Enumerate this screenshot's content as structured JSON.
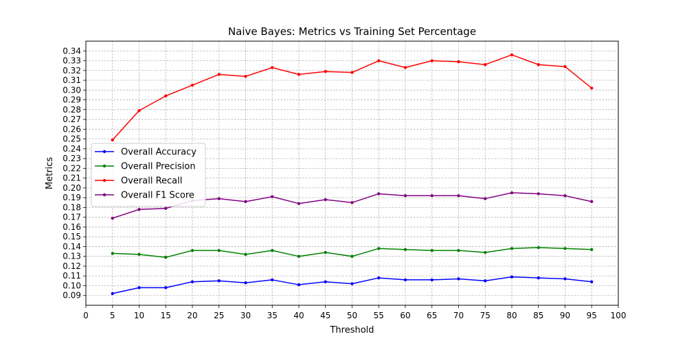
{
  "chart_data": {
    "type": "line",
    "title": "Naive Bayes: Metrics vs Training Set Percentage",
    "xlabel": "Threshold",
    "ylabel": "Metrics",
    "xlim": [
      0,
      100
    ],
    "ylim": [
      0.08,
      0.35
    ],
    "xticks": [
      0,
      5,
      10,
      15,
      20,
      25,
      30,
      35,
      40,
      45,
      50,
      55,
      60,
      65,
      70,
      75,
      80,
      85,
      90,
      95,
      100
    ],
    "yticks": [
      0.09,
      0.1,
      0.11,
      0.12,
      0.13,
      0.14,
      0.15,
      0.16,
      0.17,
      0.18,
      0.19,
      0.2,
      0.21,
      0.22,
      0.23,
      0.24,
      0.25,
      0.26,
      0.27,
      0.28,
      0.29,
      0.3,
      0.31,
      0.32,
      0.33,
      0.34
    ],
    "grid": true,
    "legend_position": "center-left",
    "x": [
      5,
      10,
      15,
      20,
      25,
      30,
      35,
      40,
      45,
      50,
      55,
      60,
      65,
      70,
      75,
      80,
      85,
      90,
      95
    ],
    "series": [
      {
        "name": "Overall Accuracy",
        "color": "#0000ff",
        "values": [
          0.092,
          0.098,
          0.098,
          0.104,
          0.105,
          0.103,
          0.106,
          0.101,
          0.104,
          0.102,
          0.108,
          0.106,
          0.106,
          0.107,
          0.105,
          0.109,
          0.108,
          0.107,
          0.104
        ]
      },
      {
        "name": "Overall Precision",
        "color": "#008000",
        "values": [
          0.133,
          0.132,
          0.129,
          0.136,
          0.136,
          0.132,
          0.136,
          0.13,
          0.134,
          0.13,
          0.138,
          0.137,
          0.136,
          0.136,
          0.134,
          0.138,
          0.139,
          0.138,
          0.137
        ]
      },
      {
        "name": "Overall Recall",
        "color": "#ff0000",
        "values": [
          0.249,
          0.279,
          0.294,
          0.305,
          0.316,
          0.314,
          0.323,
          0.316,
          0.319,
          0.318,
          0.33,
          0.323,
          0.33,
          0.329,
          0.326,
          0.336,
          0.326,
          0.324,
          0.302
        ]
      },
      {
        "name": "Overall F1 Score",
        "color": "#800080",
        "values": [
          0.169,
          0.178,
          0.179,
          0.187,
          0.189,
          0.186,
          0.191,
          0.184,
          0.188,
          0.185,
          0.194,
          0.192,
          0.192,
          0.192,
          0.189,
          0.195,
          0.194,
          0.192,
          0.186
        ]
      }
    ]
  }
}
